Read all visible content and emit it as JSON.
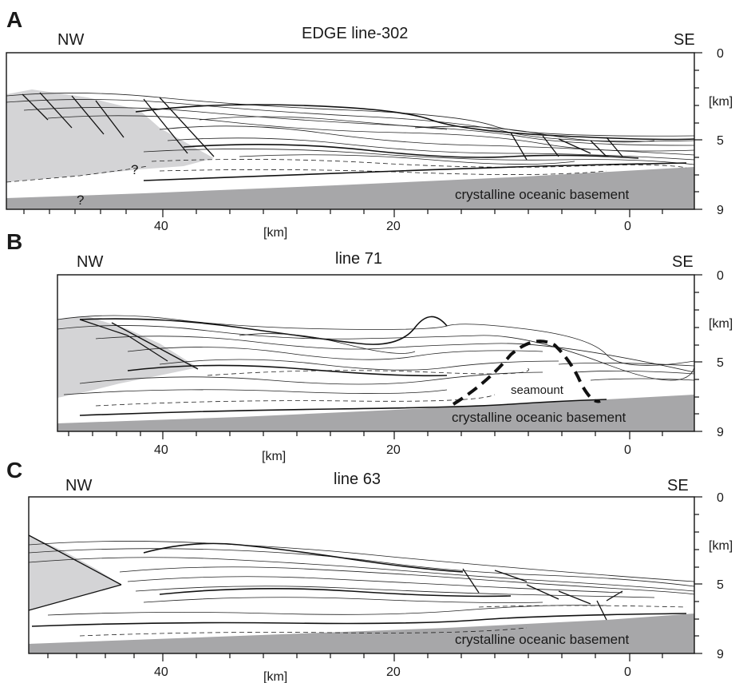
{
  "panels": [
    {
      "letter": "A",
      "title": "EDGE line-302",
      "dir_left": "NW",
      "dir_right": "SE",
      "depth_labels": [
        "0",
        "[km]",
        "5",
        "9"
      ],
      "distance_labels": [
        "40",
        "[km]",
        "20",
        "0"
      ],
      "basement_label": "crystalline oceanic basement",
      "question_marks": [
        "?",
        "?"
      ]
    },
    {
      "letter": "B",
      "title": "line 71",
      "dir_left": "NW",
      "dir_right": "SE",
      "depth_labels": [
        "0",
        "[km]",
        "5",
        "9"
      ],
      "distance_labels": [
        "40",
        "[km]",
        "20",
        "0"
      ],
      "basement_label": "crystalline oceanic basement",
      "seamount_label": "seamount"
    },
    {
      "letter": "C",
      "title": "line 63",
      "dir_left": "NW",
      "dir_right": "SE",
      "depth_labels": [
        "0",
        "[km]",
        "5",
        "9"
      ],
      "distance_labels": [
        "40",
        "[km]",
        "20",
        "0"
      ],
      "basement_label": "crystalline oceanic basement"
    }
  ],
  "colors": {
    "basement": "#a7a7a9",
    "wedge": "#d4d4d6",
    "lines": "#222222"
  }
}
